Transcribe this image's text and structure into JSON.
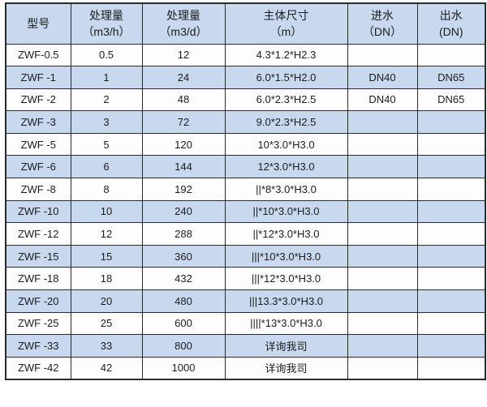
{
  "table": {
    "title": "ZWF specification table",
    "columns": [
      {
        "key": "model",
        "line1": "型号",
        "line2": ""
      },
      {
        "key": "capacity-h",
        "line1": "处理量",
        "line2": "（m3/h）"
      },
      {
        "key": "capacity-d",
        "line1": "处理量",
        "line2": "（m3/d）"
      },
      {
        "key": "dimensions",
        "line1": "主体尺寸",
        "line2": "（m）"
      },
      {
        "key": "inlet",
        "line1": "进水",
        "line2": "（DN）"
      },
      {
        "key": "outlet",
        "line1": "出水",
        "line2": "(DN)"
      }
    ],
    "rows": [
      {
        "cells": [
          "ZWF-0.5",
          "0.5",
          "12",
          "4.3*1.2*H2.3",
          "",
          ""
        ]
      },
      {
        "cells": [
          "ZWF -1",
          "1",
          "24",
          "6.0*1.5*H2.0",
          "DN40",
          "DN65"
        ]
      },
      {
        "cells": [
          "ZWF -2",
          "2",
          "48",
          "6.0*2.3*H2.5",
          "DN40",
          "DN65"
        ]
      },
      {
        "cells": [
          "ZWF -3",
          "3",
          "72",
          "9.0*2.3*H2.5",
          "",
          ""
        ]
      },
      {
        "cells": [
          "ZWF -5",
          "5",
          "120",
          "10*3.0*H3.0",
          "",
          ""
        ]
      },
      {
        "cells": [
          "ZWF -6",
          "6",
          "144",
          "12*3.0*H3.0",
          "",
          ""
        ]
      },
      {
        "cells": [
          "ZWF -8",
          "8",
          "192",
          "||*8*3.0*H3.0",
          "",
          ""
        ]
      },
      {
        "cells": [
          "ZWF -10",
          "10",
          "240",
          "||*10*3.0*H3.0",
          "",
          ""
        ]
      },
      {
        "cells": [
          "ZWF -12",
          "12",
          "288",
          "||*12*3.0*H3.0",
          "",
          ""
        ]
      },
      {
        "cells": [
          "ZWF -15",
          "15",
          "360",
          "|||*10*3.0*H3.0",
          "",
          ""
        ]
      },
      {
        "cells": [
          "ZWF -18",
          "18",
          "432",
          "|||*12*3.0*H3.0",
          "",
          ""
        ]
      },
      {
        "cells": [
          "ZWF -20",
          "20",
          "480",
          "|||13.3*3.0*H3.0",
          "",
          ""
        ]
      },
      {
        "cells": [
          "ZWF -25",
          "25",
          "600",
          "||||*13*3.0*H3.0",
          "",
          ""
        ]
      },
      {
        "cells": [
          "ZWF -33",
          "33",
          "800",
          "详询我司",
          "",
          ""
        ]
      },
      {
        "cells": [
          "ZWF -42",
          "42",
          "1000",
          "详询我司",
          "",
          ""
        ]
      }
    ],
    "colors": {
      "header_bg": "#c7d8ef",
      "stripe_bg": "#c7d8ef",
      "row_bg": "#fdfdfd",
      "border": "#2b2b2b",
      "text": "#1c1c1c"
    }
  }
}
